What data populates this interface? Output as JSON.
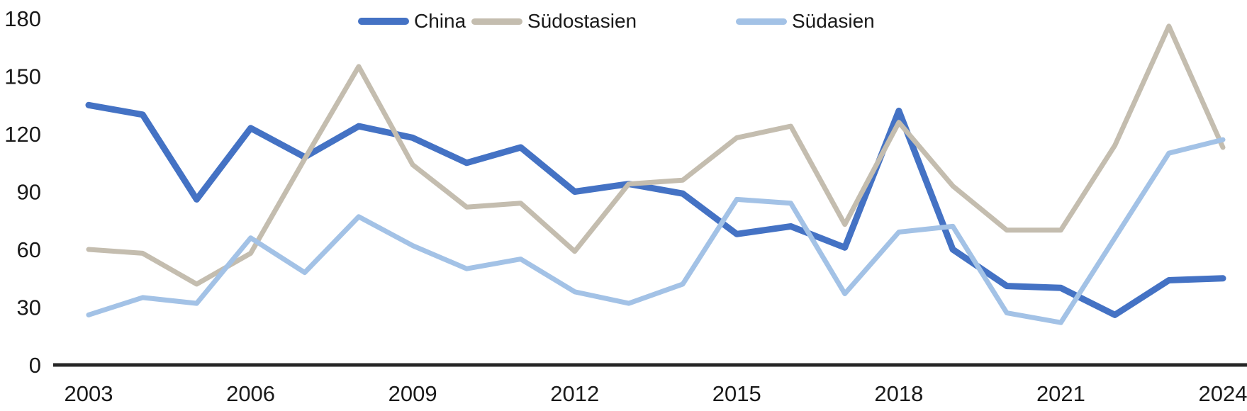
{
  "chart_data": {
    "type": "line",
    "title": "",
    "xlabel": "",
    "ylabel": "",
    "x": [
      2003,
      2004,
      2005,
      2006,
      2007,
      2008,
      2009,
      2010,
      2011,
      2012,
      2013,
      2014,
      2015,
      2016,
      2017,
      2018,
      2019,
      2020,
      2021,
      2022,
      2023,
      2024
    ],
    "x_tick_labels": [
      "2003",
      "2006",
      "2009",
      "2012",
      "2015",
      "2018",
      "2021",
      "2024"
    ],
    "y_ticks": [
      0,
      30,
      60,
      90,
      120,
      150,
      180
    ],
    "ylim": [
      0,
      180
    ],
    "grid": false,
    "legend_position": "top-center",
    "axis_color": "#262626",
    "tick_label_color": "#1a1a1a",
    "series": [
      {
        "name": "China",
        "color": "#4472C4",
        "stroke_width": 9,
        "values": [
          135,
          130,
          86,
          123,
          108,
          124,
          118,
          105,
          113,
          90,
          94,
          89,
          68,
          72,
          61,
          132,
          60,
          41,
          40,
          26,
          44,
          45
        ]
      },
      {
        "name": "Südostasien",
        "color": "#C4BDAF",
        "stroke_width": 7,
        "values": [
          60,
          58,
          42,
          58,
          107,
          155,
          104,
          82,
          84,
          59,
          94,
          96,
          118,
          124,
          73,
          126,
          93,
          70,
          70,
          114,
          176,
          113
        ]
      },
      {
        "name": "Südasien",
        "color": "#A3C2E6",
        "stroke_width": 7,
        "values": [
          26,
          35,
          32,
          66,
          48,
          77,
          62,
          50,
          55,
          38,
          32,
          42,
          86,
          84,
          37,
          69,
          72,
          27,
          22,
          66,
          110,
          117
        ]
      }
    ]
  },
  "legend": {
    "items": [
      {
        "label": "China"
      },
      {
        "label": "Südostasien"
      },
      {
        "label": "Südasien"
      }
    ]
  }
}
